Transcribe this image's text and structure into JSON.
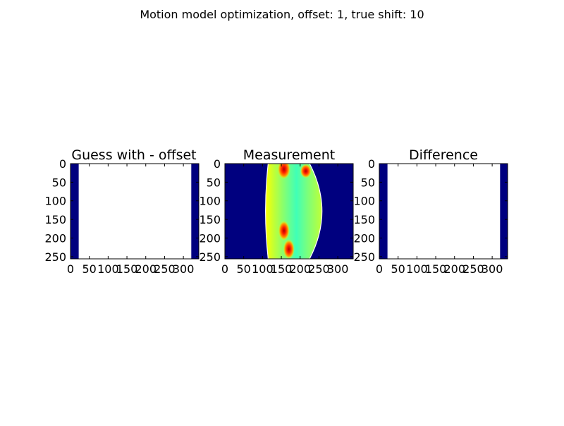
{
  "figure": {
    "suptitle": "Motion model optimization, offset:  1, true shift: 10"
  },
  "colors": {
    "background": "#ffffff",
    "jet_dark_blue": "#00007f",
    "frame": "#000000"
  },
  "chart_data": [
    {
      "type": "heatmap",
      "title": "Guess with - offset",
      "xlim": [
        0,
        341
      ],
      "ylim": [
        256,
        0
      ],
      "xticks": [
        "0",
        "50",
        "100",
        "150",
        "200",
        "250",
        "300"
      ],
      "yticks": [
        "0",
        "50",
        "100",
        "150",
        "200",
        "250"
      ],
      "xtick_values": [
        0,
        50,
        100,
        150,
        200,
        250,
        300
      ],
      "ytick_values": [
        0,
        50,
        100,
        150,
        200,
        250
      ],
      "regions": [
        {
          "x": [
            0,
            22
          ],
          "value": "dark-blue"
        },
        {
          "x": [
            22,
            321
          ],
          "value": "white"
        },
        {
          "x": [
            321,
            341
          ],
          "value": "dark-blue"
        }
      ],
      "grid": false
    },
    {
      "type": "heatmap",
      "title": "Measurement",
      "xlim": [
        0,
        341
      ],
      "ylim": [
        256,
        0
      ],
      "xticks": [
        "0",
        "50",
        "100",
        "150",
        "200",
        "250",
        "300"
      ],
      "yticks": [
        "0",
        "50",
        "100",
        "150",
        "200",
        "250"
      ],
      "xtick_values": [
        0,
        50,
        100,
        150,
        200,
        250,
        300
      ],
      "ytick_values": [
        0,
        50,
        100,
        150,
        200,
        250
      ],
      "colormap": "jet",
      "object": {
        "left_edge_x": [
          115,
          108,
          115
        ],
        "right_edge_x": [
          225,
          258,
          225
        ],
        "edge_y": [
          0,
          128,
          256
        ],
        "hot_spots_x": [
          157,
          170,
          215
        ],
        "hot_spots_y": [
          15,
          230,
          20
        ]
      },
      "grid": false
    },
    {
      "type": "heatmap",
      "title": "Difference",
      "xlim": [
        0,
        341
      ],
      "ylim": [
        256,
        0
      ],
      "xticks": [
        "0",
        "50",
        "100",
        "150",
        "200",
        "250",
        "300"
      ],
      "yticks": [
        "0",
        "50",
        "100",
        "150",
        "200",
        "250"
      ],
      "xtick_values": [
        0,
        50,
        100,
        150,
        200,
        250,
        300
      ],
      "ytick_values": [
        0,
        50,
        100,
        150,
        200,
        250
      ],
      "regions": [
        {
          "x": [
            0,
            22
          ],
          "value": "dark-blue"
        },
        {
          "x": [
            22,
            321
          ],
          "value": "white"
        },
        {
          "x": [
            321,
            341
          ],
          "value": "dark-blue"
        }
      ],
      "grid": false
    }
  ]
}
